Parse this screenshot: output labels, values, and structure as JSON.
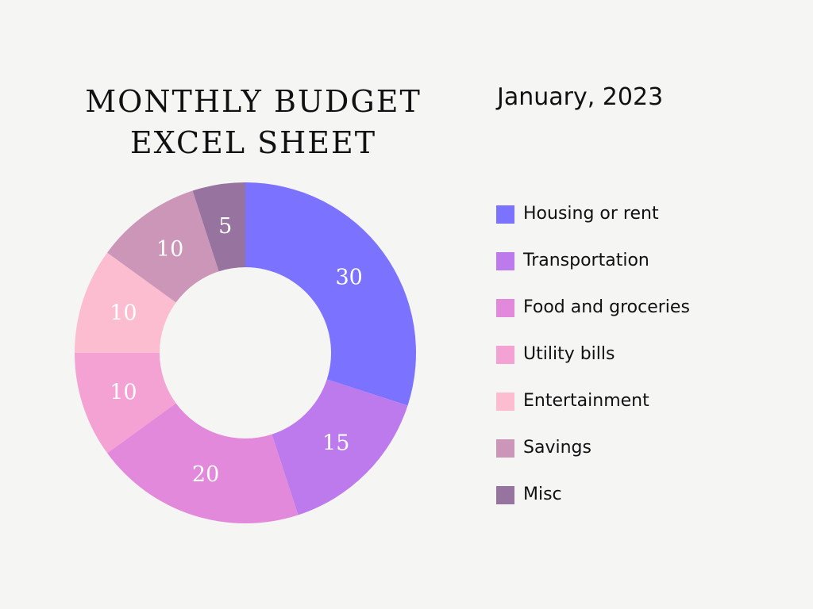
{
  "chart_data": {
    "type": "pie",
    "title_lines": [
      "MONTHLY BUDGET",
      "EXCEL SHEET"
    ],
    "subtitle": "January, 2023",
    "legend_position": "right",
    "categories": [
      "Housing or rent",
      "Transportation",
      "Food and groceries",
      "Utility bills",
      "Entertainment",
      "Savings",
      "Misc"
    ],
    "values": [
      30,
      15,
      20,
      10,
      10,
      10,
      5
    ],
    "colors": [
      "#7b73ff",
      "#bd7aec",
      "#e389dc",
      "#f4a2d3",
      "#fdbdd0",
      "#cb96b7",
      "#97739f"
    ],
    "donut": true
  }
}
